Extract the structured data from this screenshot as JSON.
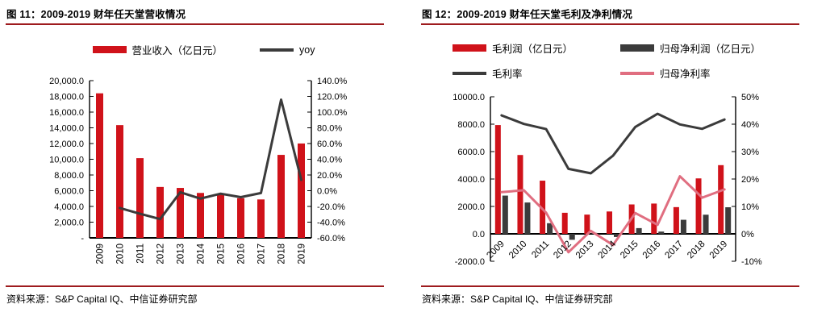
{
  "colors": {
    "bar_red": "#D0121A",
    "dark": "#3B3B3B",
    "pink": "#E06E80",
    "rule_dark_red": "#9E1B1E"
  },
  "panels": [
    {
      "title": "图 11：2009-2019 财年任天堂营收情况",
      "source": "资料来源：S&P Capital IQ、中信证券研究部",
      "legend": [
        {
          "label": "营业收入（亿日元）",
          "type": "bar",
          "color": "#D0121A"
        },
        {
          "label": "yoy",
          "type": "line",
          "color": "#3B3B3B"
        }
      ]
    },
    {
      "title": "图 12：2009-2019 财年任天堂毛利及净利情况",
      "source": "资料来源：S&P Capital IQ、中信证券研究部",
      "legend": [
        {
          "label": "毛利润（亿日元）",
          "type": "bar",
          "color": "#D0121A"
        },
        {
          "label": "归母净利润（亿日元）",
          "type": "bar",
          "color": "#3B3B3B"
        },
        {
          "label": "毛利率",
          "type": "line",
          "color": "#3B3B3B"
        },
        {
          "label": "归母净利率",
          "type": "line",
          "color": "#E06E80"
        }
      ]
    }
  ],
  "chart_data": [
    {
      "type": "bar",
      "title": "图 11：2009-2019 财年任天堂营收情况",
      "categories": [
        "2009",
        "2010",
        "2011",
        "2012",
        "2013",
        "2014",
        "2015",
        "2016",
        "2017",
        "2018",
        "2019"
      ],
      "series": [
        {
          "name": "营业收入（亿日元）",
          "type": "bar",
          "axis": "left",
          "color": "#D0121A",
          "values": [
            18386,
            14343,
            10143,
            6477,
            6354,
            5717,
            5498,
            5045,
            4891,
            10557,
            12006
          ]
        },
        {
          "name": "yoy",
          "type": "line",
          "axis": "right",
          "color": "#3B3B3B",
          "values": [
            null,
            -22.0,
            -29.3,
            -36.1,
            -1.9,
            -10.0,
            -3.8,
            -8.2,
            -3.0,
            115.8,
            13.7
          ]
        }
      ],
      "left_axis": {
        "min": 0,
        "max": 20000,
        "step": 2000,
        "format": "comma1z",
        "tick_labels": [
          "-",
          "2,000.0",
          "4,000.0",
          "6,000.0",
          "8,000.0",
          "10,000.0",
          "12,000.0",
          "14,000.0",
          "16,000.0",
          "18,000.0",
          "20,000.0"
        ]
      },
      "right_axis": {
        "min": -60,
        "max": 140,
        "step": 20,
        "format": "pct1",
        "tick_labels": [
          "-60.0%",
          "-40.0%",
          "-20.0%",
          "0.0%",
          "20.0%",
          "40.0%",
          "60.0%",
          "80.0%",
          "100.0%",
          "120.0%",
          "140.0%"
        ]
      },
      "x_label_rotation": -90,
      "grid": false,
      "legend_position": "top"
    },
    {
      "type": "bar",
      "title": "图 12：2009-2019 财年任天堂毛利及净利情况",
      "categories": [
        "2009",
        "2010",
        "2011",
        "2012",
        "2013",
        "2014",
        "2015",
        "2016",
        "2017",
        "2018",
        "2019"
      ],
      "series": [
        {
          "name": "毛利润（亿日元）",
          "type": "bar",
          "axis": "left",
          "color": "#D0121A",
          "values": [
            7936,
            5752,
            3880,
            1537,
            1404,
            1632,
            2146,
            2210,
            1950,
            4045,
            5012
          ]
        },
        {
          "name": "归母净利润（亿日元）",
          "type": "bar",
          "axis": "left",
          "color": "#3B3B3B",
          "values": [
            2790,
            2286,
            776,
            -432,
            70,
            -232,
            418,
            165,
            1026,
            1396,
            1940
          ]
        },
        {
          "name": "毛利率",
          "type": "line",
          "axis": "right",
          "color": "#3B3B3B",
          "values": [
            43.2,
            40.1,
            38.2,
            23.7,
            22.1,
            28.5,
            39.0,
            43.8,
            39.9,
            38.3,
            41.7
          ]
        },
        {
          "name": "归母净利率",
          "type": "line",
          "axis": "right",
          "color": "#E06E80",
          "values": [
            15.2,
            15.9,
            7.7,
            -6.7,
            1.1,
            -4.1,
            7.6,
            3.3,
            21.0,
            13.2,
            16.2
          ]
        }
      ],
      "left_axis": {
        "min": -2000,
        "max": 10000,
        "step": 2000,
        "format": "plain1",
        "tick_labels": [
          "-2000.0",
          "0.0",
          "2000.0",
          "4000.0",
          "6000.0",
          "8000.0",
          "10000.0"
        ]
      },
      "right_axis": {
        "min": -10,
        "max": 50,
        "step": 10,
        "format": "pct0",
        "tick_labels": [
          "-10%",
          "0%",
          "10%",
          "20%",
          "30%",
          "40%",
          "50%"
        ]
      },
      "x_label_rotation": -45,
      "grid": false,
      "legend_position": "top"
    }
  ]
}
